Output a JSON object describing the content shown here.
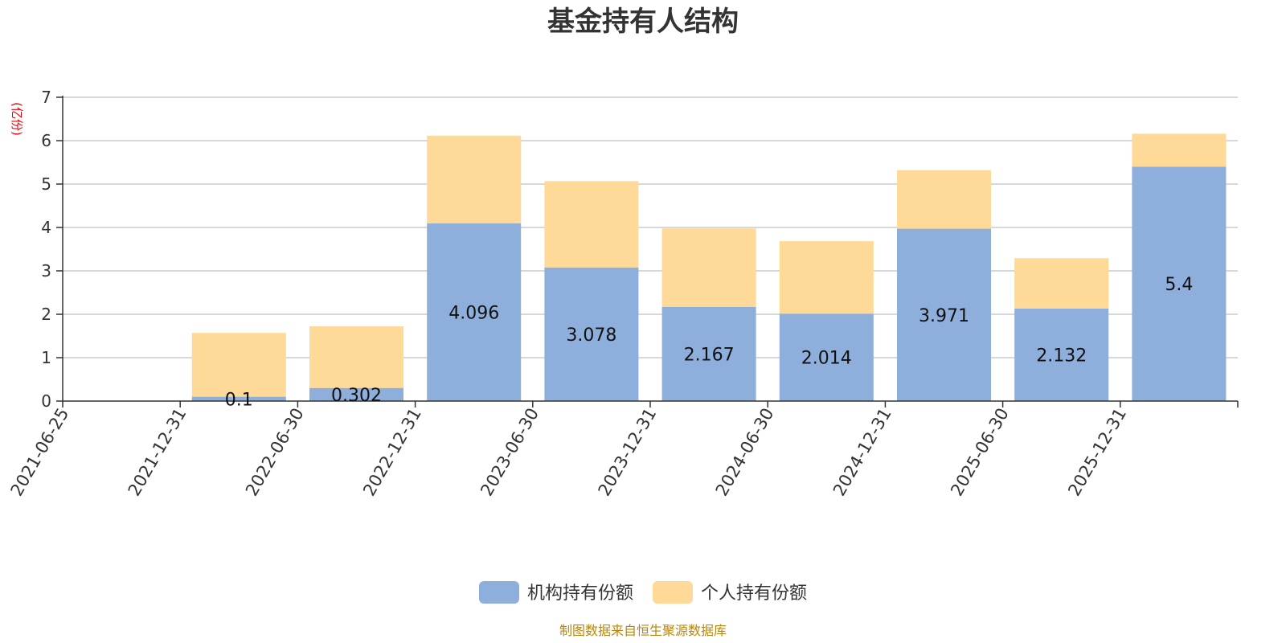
{
  "chart_data": {
    "type": "bar",
    "stacked": true,
    "title": "基金持有人结构",
    "ylabel": "(亿份)",
    "xlabel": "",
    "ylim": [
      0,
      7
    ],
    "yticks": [
      0,
      1,
      2,
      3,
      4,
      5,
      6,
      7
    ],
    "grid": true,
    "legend_position": "bottom-center",
    "categories": [
      "2021-06-25",
      "2021-12-31",
      "2022-06-30",
      "2022-12-31",
      "2023-06-30",
      "2023-12-31",
      "2024-06-30",
      "2024-12-31",
      "2025-06-30",
      "2025-12-31"
    ],
    "series": [
      {
        "name": "机构持有份额",
        "color": "#8eaedb",
        "values": [
          0,
          0.1,
          0.302,
          4.096,
          3.078,
          2.167,
          2.014,
          3.971,
          2.132,
          5.4
        ],
        "labels": [
          "",
          "0.1",
          "0.302",
          "4.096",
          "3.078",
          "2.167",
          "2.014",
          "3.971",
          "2.132",
          "5.4"
        ]
      },
      {
        "name": "个人持有份额",
        "color": "#fed998",
        "values": [
          0,
          1.47,
          1.42,
          2.02,
          1.99,
          1.81,
          1.67,
          1.35,
          1.16,
          0.76
        ]
      }
    ]
  },
  "source_note": "制图数据来自恒生聚源数据库",
  "colors": {
    "unit": "#e8000b",
    "source": "#b8860b",
    "grid": "#cccccc",
    "axis": "#333333"
  }
}
